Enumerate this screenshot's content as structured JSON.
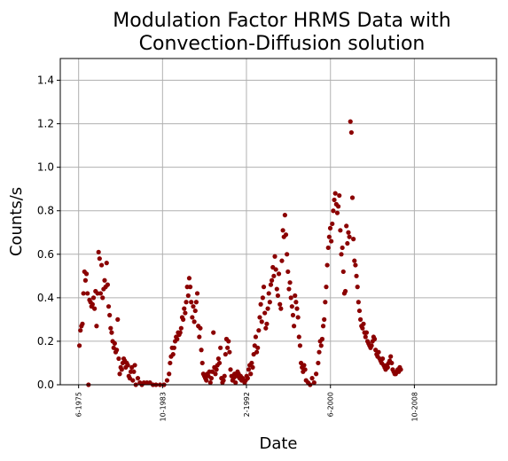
{
  "chart_data": {
    "type": "scatter",
    "title_lines": [
      "Modulation Factor HRMS Data with",
      "Convection-Diffusion solution"
    ],
    "xlabel": "Date",
    "ylabel": "Counts/s",
    "xlim": [
      1973.6,
      2016.9
    ],
    "ylim": [
      0,
      1.5
    ],
    "x_ticks": [
      {
        "value": 1975.42,
        "label": "6-1975"
      },
      {
        "value": 1983.75,
        "label": "10-1983"
      },
      {
        "value": 1992.08,
        "label": "2-1992"
      },
      {
        "value": 2000.42,
        "label": "6-2000"
      },
      {
        "value": 2008.75,
        "label": "10-2008"
      }
    ],
    "y_ticks": [
      {
        "value": 0.0,
        "label": "0.0"
      },
      {
        "value": 0.2,
        "label": "0.2"
      },
      {
        "value": 0.4,
        "label": "0.4"
      },
      {
        "value": 0.6,
        "label": "0.6"
      },
      {
        "value": 0.8,
        "label": "0.8"
      },
      {
        "value": 1.0,
        "label": "1.0"
      },
      {
        "value": 1.2,
        "label": "1.2"
      },
      {
        "value": 1.4,
        "label": "1.4"
      }
    ],
    "grid": true,
    "marker_color": "#8b0000",
    "series": [
      {
        "points": [
          [
            1975.5,
            0.18
          ],
          [
            1975.6,
            0.25
          ],
          [
            1975.7,
            0.27
          ],
          [
            1975.8,
            0.28
          ],
          [
            1975.9,
            0.42
          ],
          [
            1976.0,
            0.52
          ],
          [
            1976.1,
            0.48
          ],
          [
            1976.2,
            0.51
          ],
          [
            1976.3,
            0.42
          ],
          [
            1976.4,
            0.0
          ],
          [
            1976.5,
            0.39
          ],
          [
            1976.6,
            0.38
          ],
          [
            1976.7,
            0.36
          ],
          [
            1976.8,
            0.37
          ],
          [
            1976.9,
            0.4
          ],
          [
            1977.0,
            0.35
          ],
          [
            1977.1,
            0.43
          ],
          [
            1977.2,
            0.27
          ],
          [
            1977.3,
            0.42
          ],
          [
            1977.4,
            0.61
          ],
          [
            1977.5,
            0.58
          ],
          [
            1977.6,
            0.42
          ],
          [
            1977.7,
            0.55
          ],
          [
            1977.8,
            0.4
          ],
          [
            1977.9,
            0.44
          ],
          [
            1978.0,
            0.48
          ],
          [
            1978.1,
            0.45
          ],
          [
            1978.2,
            0.56
          ],
          [
            1978.3,
            0.46
          ],
          [
            1978.4,
            0.36
          ],
          [
            1978.5,
            0.32
          ],
          [
            1978.6,
            0.26
          ],
          [
            1978.7,
            0.24
          ],
          [
            1978.8,
            0.2
          ],
          [
            1978.9,
            0.17
          ],
          [
            1979.0,
            0.19
          ],
          [
            1979.1,
            0.15
          ],
          [
            1979.2,
            0.16
          ],
          [
            1979.3,
            0.3
          ],
          [
            1979.4,
            0.12
          ],
          [
            1979.5,
            0.05
          ],
          [
            1979.6,
            0.08
          ],
          [
            1979.7,
            0.07
          ],
          [
            1979.8,
            0.1
          ],
          [
            1979.9,
            0.12
          ],
          [
            1980.0,
            0.11
          ],
          [
            1980.1,
            0.08
          ],
          [
            1980.2,
            0.1
          ],
          [
            1980.3,
            0.09
          ],
          [
            1980.4,
            0.04
          ],
          [
            1980.5,
            0.03
          ],
          [
            1980.6,
            0.06
          ],
          [
            1980.7,
            0.08
          ],
          [
            1980.8,
            0.02
          ],
          [
            1980.9,
            0.06
          ],
          [
            1981.0,
            0.09
          ],
          [
            1981.1,
            0.0
          ],
          [
            1981.3,
            0.03
          ],
          [
            1981.5,
            0.01
          ],
          [
            1981.7,
            0.0
          ],
          [
            1981.9,
            0.01
          ],
          [
            1982.2,
            0.01
          ],
          [
            1982.5,
            0.01
          ],
          [
            1982.8,
            0.0
          ],
          [
            1983.1,
            0.0
          ],
          [
            1983.5,
            0.0
          ],
          [
            1983.9,
            0.0
          ],
          [
            1984.2,
            0.02
          ],
          [
            1984.4,
            0.05
          ],
          [
            1984.5,
            0.1
          ],
          [
            1984.6,
            0.13
          ],
          [
            1984.7,
            0.17
          ],
          [
            1984.8,
            0.14
          ],
          [
            1984.9,
            0.17
          ],
          [
            1985.0,
            0.2
          ],
          [
            1985.1,
            0.22
          ],
          [
            1985.2,
            0.21
          ],
          [
            1985.3,
            0.24
          ],
          [
            1985.4,
            0.23
          ],
          [
            1985.5,
            0.24
          ],
          [
            1985.6,
            0.26
          ],
          [
            1985.7,
            0.31
          ],
          [
            1985.8,
            0.3
          ],
          [
            1985.9,
            0.35
          ],
          [
            1986.0,
            0.33
          ],
          [
            1986.1,
            0.38
          ],
          [
            1986.2,
            0.45
          ],
          [
            1986.3,
            0.41
          ],
          [
            1986.4,
            0.49
          ],
          [
            1986.5,
            0.45
          ],
          [
            1986.6,
            0.38
          ],
          [
            1986.7,
            0.31
          ],
          [
            1986.8,
            0.36
          ],
          [
            1986.9,
            0.29
          ],
          [
            1987.0,
            0.34
          ],
          [
            1987.1,
            0.38
          ],
          [
            1987.2,
            0.42
          ],
          [
            1987.3,
            0.27
          ],
          [
            1987.4,
            0.22
          ],
          [
            1987.5,
            0.26
          ],
          [
            1987.6,
            0.16
          ],
          [
            1987.7,
            0.1
          ],
          [
            1987.8,
            0.05
          ],
          [
            1987.9,
            0.04
          ],
          [
            1988.0,
            0.03
          ],
          [
            1988.1,
            0.02
          ],
          [
            1988.2,
            0.05
          ],
          [
            1988.3,
            0.04
          ],
          [
            1988.4,
            0.06
          ],
          [
            1988.5,
            0.01
          ],
          [
            1988.6,
            0.03
          ],
          [
            1988.7,
            0.06
          ],
          [
            1988.8,
            0.24
          ],
          [
            1988.9,
            0.08
          ],
          [
            1989.0,
            0.05
          ],
          [
            1989.1,
            0.07
          ],
          [
            1989.2,
            0.09
          ],
          [
            1989.3,
            0.12
          ],
          [
            1989.4,
            0.1
          ],
          [
            1989.5,
            0.17
          ],
          [
            1989.6,
            0.03
          ],
          [
            1989.7,
            0.01
          ],
          [
            1989.8,
            0.02
          ],
          [
            1989.9,
            0.04
          ],
          [
            1990.0,
            0.14
          ],
          [
            1990.1,
            0.21
          ],
          [
            1990.2,
            0.17
          ],
          [
            1990.3,
            0.2
          ],
          [
            1990.4,
            0.15
          ],
          [
            1990.5,
            0.07
          ],
          [
            1990.6,
            0.04
          ],
          [
            1990.7,
            0.02
          ],
          [
            1990.8,
            0.03
          ],
          [
            1990.9,
            0.05
          ],
          [
            1991.0,
            0.01
          ],
          [
            1991.1,
            0.04
          ],
          [
            1991.2,
            0.06
          ],
          [
            1991.3,
            0.05
          ],
          [
            1991.4,
            0.03
          ],
          [
            1991.5,
            0.04
          ],
          [
            1991.6,
            0.02
          ],
          [
            1991.7,
            0.03
          ],
          [
            1991.8,
            0.02
          ],
          [
            1991.9,
            0.01
          ],
          [
            1992.0,
            0.02
          ],
          [
            1992.1,
            0.04
          ],
          [
            1992.2,
            0.03
          ],
          [
            1992.3,
            0.07
          ],
          [
            1992.4,
            0.09
          ],
          [
            1992.5,
            0.05
          ],
          [
            1992.6,
            0.1
          ],
          [
            1992.7,
            0.08
          ],
          [
            1992.8,
            0.14
          ],
          [
            1992.9,
            0.18
          ],
          [
            1993.0,
            0.22
          ],
          [
            1993.1,
            0.15
          ],
          [
            1993.2,
            0.17
          ],
          [
            1993.3,
            0.25
          ],
          [
            1993.4,
            0.31
          ],
          [
            1993.5,
            0.37
          ],
          [
            1993.6,
            0.29
          ],
          [
            1993.7,
            0.4
          ],
          [
            1993.8,
            0.45
          ],
          [
            1993.9,
            0.33
          ],
          [
            1994.0,
            0.26
          ],
          [
            1994.1,
            0.28
          ],
          [
            1994.2,
            0.35
          ],
          [
            1994.3,
            0.42
          ],
          [
            1994.4,
            0.38
          ],
          [
            1994.5,
            0.46
          ],
          [
            1994.6,
            0.48
          ],
          [
            1994.7,
            0.54
          ],
          [
            1994.8,
            0.5
          ],
          [
            1994.9,
            0.59
          ],
          [
            1995.0,
            0.53
          ],
          [
            1995.1,
            0.44
          ],
          [
            1995.2,
            0.41
          ],
          [
            1995.3,
            0.51
          ],
          [
            1995.4,
            0.37
          ],
          [
            1995.5,
            0.35
          ],
          [
            1995.6,
            0.57
          ],
          [
            1995.7,
            0.71
          ],
          [
            1995.8,
            0.68
          ],
          [
            1995.9,
            0.78
          ],
          [
            1996.0,
            0.69
          ],
          [
            1996.1,
            0.6
          ],
          [
            1996.2,
            0.52
          ],
          [
            1996.3,
            0.44
          ],
          [
            1996.4,
            0.47
          ],
          [
            1996.5,
            0.4
          ],
          [
            1996.6,
            0.36
          ],
          [
            1996.7,
            0.32
          ],
          [
            1996.8,
            0.27
          ],
          [
            1996.9,
            0.41
          ],
          [
            1997.0,
            0.38
          ],
          [
            1997.1,
            0.35
          ],
          [
            1997.2,
            0.31
          ],
          [
            1997.3,
            0.22
          ],
          [
            1997.4,
            0.18
          ],
          [
            1997.5,
            0.1
          ],
          [
            1997.6,
            0.08
          ],
          [
            1997.7,
            0.06
          ],
          [
            1997.8,
            0.09
          ],
          [
            1997.9,
            0.07
          ],
          [
            1998.0,
            0.02
          ],
          [
            1998.2,
            0.01
          ],
          [
            1998.4,
            0.0
          ],
          [
            1998.6,
            0.03
          ],
          [
            1998.8,
            0.01
          ],
          [
            1999.0,
            0.05
          ],
          [
            1999.2,
            0.1
          ],
          [
            1999.3,
            0.15
          ],
          [
            1999.4,
            0.2
          ],
          [
            1999.5,
            0.18
          ],
          [
            1999.6,
            0.21
          ],
          [
            1999.7,
            0.27
          ],
          [
            1999.8,
            0.3
          ],
          [
            1999.9,
            0.38
          ],
          [
            2000.0,
            0.45
          ],
          [
            2000.1,
            0.55
          ],
          [
            2000.2,
            0.63
          ],
          [
            2000.3,
            0.68
          ],
          [
            2000.4,
            0.72
          ],
          [
            2000.5,
            0.66
          ],
          [
            2000.6,
            0.74
          ],
          [
            2000.7,
            0.8
          ],
          [
            2000.8,
            0.85
          ],
          [
            2000.9,
            0.88
          ],
          [
            2001.0,
            0.83
          ],
          [
            2001.1,
            0.79
          ],
          [
            2001.2,
            0.82
          ],
          [
            2001.3,
            0.87
          ],
          [
            2001.4,
            0.71
          ],
          [
            2001.5,
            0.6
          ],
          [
            2001.6,
            0.63
          ],
          [
            2001.7,
            0.52
          ],
          [
            2001.8,
            0.42
          ],
          [
            2001.9,
            0.43
          ],
          [
            2002.0,
            0.73
          ],
          [
            2002.1,
            0.65
          ],
          [
            2002.2,
            0.7
          ],
          [
            2002.3,
            0.68
          ],
          [
            2002.4,
            1.21
          ],
          [
            2002.5,
            1.16
          ],
          [
            2002.6,
            0.86
          ],
          [
            2002.7,
            0.67
          ],
          [
            2002.8,
            0.57
          ],
          [
            2002.9,
            0.55
          ],
          [
            2003.0,
            0.5
          ],
          [
            2003.1,
            0.45
          ],
          [
            2003.2,
            0.38
          ],
          [
            2003.3,
            0.34
          ],
          [
            2003.4,
            0.3
          ],
          [
            2003.5,
            0.27
          ],
          [
            2003.6,
            0.26
          ],
          [
            2003.7,
            0.28
          ],
          [
            2003.8,
            0.24
          ],
          [
            2003.9,
            0.22
          ],
          [
            2004.0,
            0.24
          ],
          [
            2004.1,
            0.2
          ],
          [
            2004.2,
            0.19
          ],
          [
            2004.3,
            0.18
          ],
          [
            2004.4,
            0.17
          ],
          [
            2004.5,
            0.18
          ],
          [
            2004.6,
            0.2
          ],
          [
            2004.7,
            0.22
          ],
          [
            2004.8,
            0.21
          ],
          [
            2004.9,
            0.16
          ],
          [
            2005.0,
            0.14
          ],
          [
            2005.1,
            0.13
          ],
          [
            2005.2,
            0.15
          ],
          [
            2005.3,
            0.12
          ],
          [
            2005.4,
            0.11
          ],
          [
            2005.5,
            0.1
          ],
          [
            2005.6,
            0.12
          ],
          [
            2005.7,
            0.09
          ],
          [
            2005.8,
            0.08
          ],
          [
            2005.9,
            0.07
          ],
          [
            2006.0,
            0.09
          ],
          [
            2006.1,
            0.08
          ],
          [
            2006.2,
            0.1
          ],
          [
            2006.3,
            0.11
          ],
          [
            2006.4,
            0.13
          ],
          [
            2006.5,
            0.1
          ],
          [
            2006.6,
            0.07
          ],
          [
            2006.7,
            0.06
          ],
          [
            2006.8,
            0.05
          ],
          [
            2006.9,
            0.05
          ],
          [
            2007.0,
            0.06
          ],
          [
            2007.1,
            0.07
          ],
          [
            2007.2,
            0.06
          ],
          [
            2007.3,
            0.08
          ],
          [
            2007.4,
            0.07
          ]
        ]
      }
    ]
  }
}
